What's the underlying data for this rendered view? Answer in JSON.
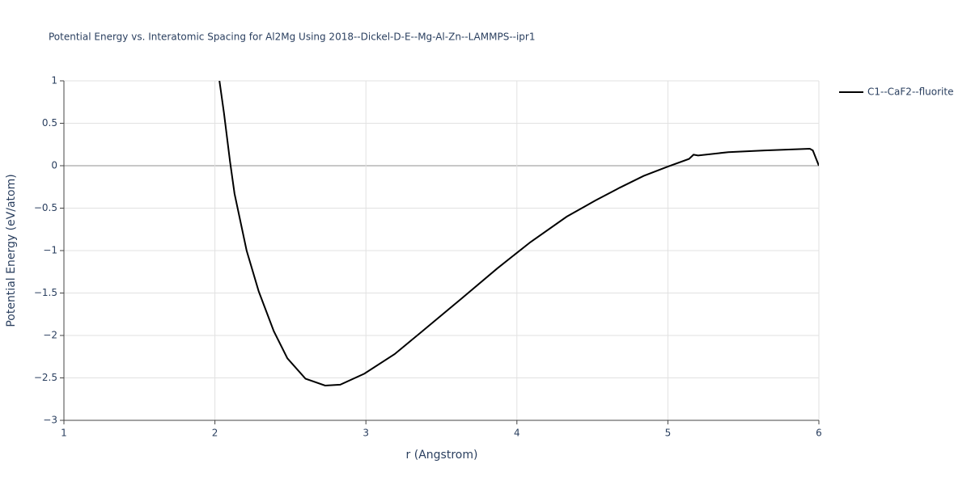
{
  "chart_data": {
    "type": "line",
    "title": "Potential Energy vs. Interatomic Spacing for Al2Mg Using 2018--Dickel-D-E--Mg-Al-Zn--LAMMPS--ipr1",
    "x_label": "r (Angstrom)",
    "y_label": "Potential Energy (eV/atom)",
    "x": [
      2.03,
      2.06,
      2.1,
      2.13,
      2.21,
      2.29,
      2.39,
      2.48,
      2.6,
      2.73,
      2.83,
      2.99,
      3.19,
      3.36,
      3.63,
      3.87,
      4.09,
      4.33,
      4.52,
      4.68,
      4.84,
      5.0,
      5.14,
      5.17,
      5.2,
      5.4,
      5.64,
      5.94,
      5.96,
      6.0
    ],
    "series": [
      {
        "name": "C1--CaF2--fluorite",
        "color": "#000000",
        "values": [
          1.0,
          0.62,
          0.05,
          -0.33,
          -1.0,
          -1.48,
          -1.95,
          -2.27,
          -2.51,
          -2.59,
          -2.58,
          -2.45,
          -2.22,
          -1.97,
          -1.57,
          -1.21,
          -0.9,
          -0.6,
          -0.41,
          -0.26,
          -0.12,
          -0.01,
          0.08,
          0.13,
          0.12,
          0.16,
          0.18,
          0.2,
          0.18,
          0.0
        ]
      }
    ],
    "xlim": [
      1,
      6
    ],
    "xticks": [
      1,
      2,
      3,
      4,
      5,
      6
    ],
    "ylim": [
      -3,
      1
    ],
    "yticks": [
      {
        "value": -3,
        "label": "−3"
      },
      {
        "value": -2.5,
        "label": "−2.5"
      },
      {
        "value": -2,
        "label": "−2"
      },
      {
        "value": -1.5,
        "label": "−1.5"
      },
      {
        "value": -1,
        "label": "−1"
      },
      {
        "value": -0.5,
        "label": "−0.5"
      },
      0,
      0.5,
      1
    ],
    "grid": true,
    "legend": "top-right"
  }
}
